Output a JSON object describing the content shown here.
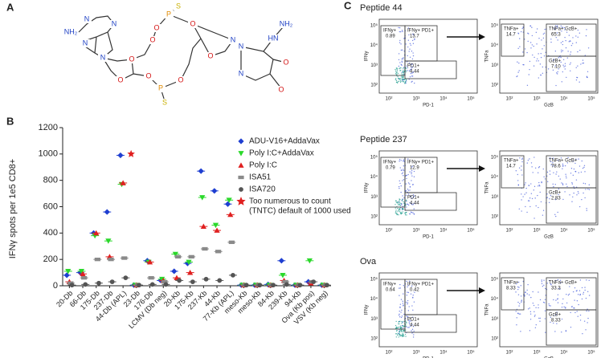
{
  "panels": {
    "a": "A",
    "b": "B",
    "c": "C"
  },
  "structure": {
    "atoms": [
      "NH₂",
      "N",
      "N",
      "N",
      "N",
      "O",
      "O",
      "O",
      "O",
      "P",
      "S",
      "O",
      "O",
      "P",
      "S",
      "O",
      "O",
      "N",
      "N",
      "N",
      "HN",
      "NH₂",
      "O",
      "O"
    ]
  },
  "chart_data": {
    "type": "scatter",
    "ylabel": "IFNγ spots per 1e5 CD8+",
    "categories": [
      "20-Db",
      "66-Db",
      "175-Db",
      "237-Db",
      "44-Db (APL)",
      "23-Db",
      "176-Db",
      "LCMV (Db neg)",
      "20-Kb",
      "175-Kb",
      "237-Kb",
      "44-Kb",
      "77-Kb (APL)",
      "meso-Kb",
      "meso-Kb",
      "84-Kb",
      "239-Kb",
      "94-Kb",
      "Ova (Kb pos)",
      "VSV (Kb neg)"
    ],
    "ylim": [
      0,
      1200
    ],
    "yticks": [
      0,
      200,
      400,
      600,
      800,
      1000,
      1200
    ],
    "series": [
      {
        "name": "ADU-V16+AddaVax",
        "color": "#1f3fd1",
        "marker": "diamond",
        "values": [
          80,
          100,
          400,
          560,
          990,
          5,
          190,
          40,
          110,
          170,
          870,
          720,
          620,
          5,
          5,
          10,
          190,
          5,
          30,
          5
        ]
      },
      {
        "name": "Poly I:C+AddaVax",
        "color": "#2bd92b",
        "marker": "triangle-down",
        "values": [
          110,
          110,
          380,
          340,
          770,
          5,
          180,
          50,
          240,
          180,
          670,
          460,
          650,
          5,
          5,
          5,
          80,
          5,
          190,
          5
        ]
      },
      {
        "name": "Poly I:C",
        "color": "#e02020",
        "marker": "triangle-up",
        "values": [
          30,
          90,
          400,
          220,
          780,
          5,
          180,
          40,
          60,
          100,
          450,
          420,
          540,
          5,
          5,
          5,
          40,
          5,
          20,
          5
        ]
      },
      {
        "name": "ISA51",
        "color": "#8a8a8a",
        "marker": "square",
        "values": [
          20,
          60,
          200,
          200,
          210,
          5,
          60,
          30,
          220,
          220,
          280,
          260,
          330,
          5,
          5,
          5,
          30,
          5,
          30,
          5
        ]
      },
      {
        "name": "ISA720",
        "color": "#555555",
        "marker": "circle",
        "values": [
          5,
          10,
          20,
          30,
          60,
          5,
          10,
          10,
          40,
          30,
          50,
          40,
          80,
          5,
          5,
          5,
          10,
          5,
          30,
          5
        ]
      }
    ],
    "tntc": {
      "category": 4,
      "value": 1000,
      "color": "#e02020"
    },
    "legend_note": [
      "Too numerous to count",
      "(TNTC) default of 1000 used"
    ]
  },
  "flow": {
    "ticks": [
      "10²",
      "10³",
      "10⁴",
      "10⁵"
    ],
    "labels": {
      "ifng": "IFNy",
      "pd1": "PD-1",
      "tnfa": "TNFa",
      "gzb": "GzB"
    },
    "rows": [
      {
        "title": "Peptide 44",
        "left": [
          [
            "IFNy+",
            "0.89"
          ],
          [
            "IFNy+ PD1+",
            "13.7"
          ],
          [
            "PD1+",
            "4.44"
          ]
        ],
        "right": [
          [
            "TNFa+",
            "14.7"
          ],
          [
            "TNFa+ GzB+",
            "65.3"
          ],
          [
            "GzB+",
            "7.10"
          ]
        ]
      },
      {
        "title": "Peptide 237",
        "left": [
          [
            "IFNy+",
            "0.79"
          ],
          [
            "IFNy+ PD1+",
            "12.9"
          ],
          [
            "PD1+",
            "4.44"
          ]
        ],
        "right": [
          [
            "TNFa+",
            "14.7"
          ],
          [
            "TNFa+ GzB+",
            "78.6"
          ],
          [
            "GzB+",
            "2.83"
          ]
        ]
      },
      {
        "title": "Ova",
        "left": [
          [
            "IFNy+",
            "0.64"
          ],
          [
            "IFNy+ PD1+",
            "0.42"
          ],
          [
            "PD1+",
            "4.44"
          ]
        ],
        "right": [
          [
            "TNFa+",
            "8.33"
          ],
          [
            "TNFa+ GzB+",
            "33.3"
          ],
          [
            "GzB+",
            "8.33"
          ]
        ]
      }
    ]
  }
}
